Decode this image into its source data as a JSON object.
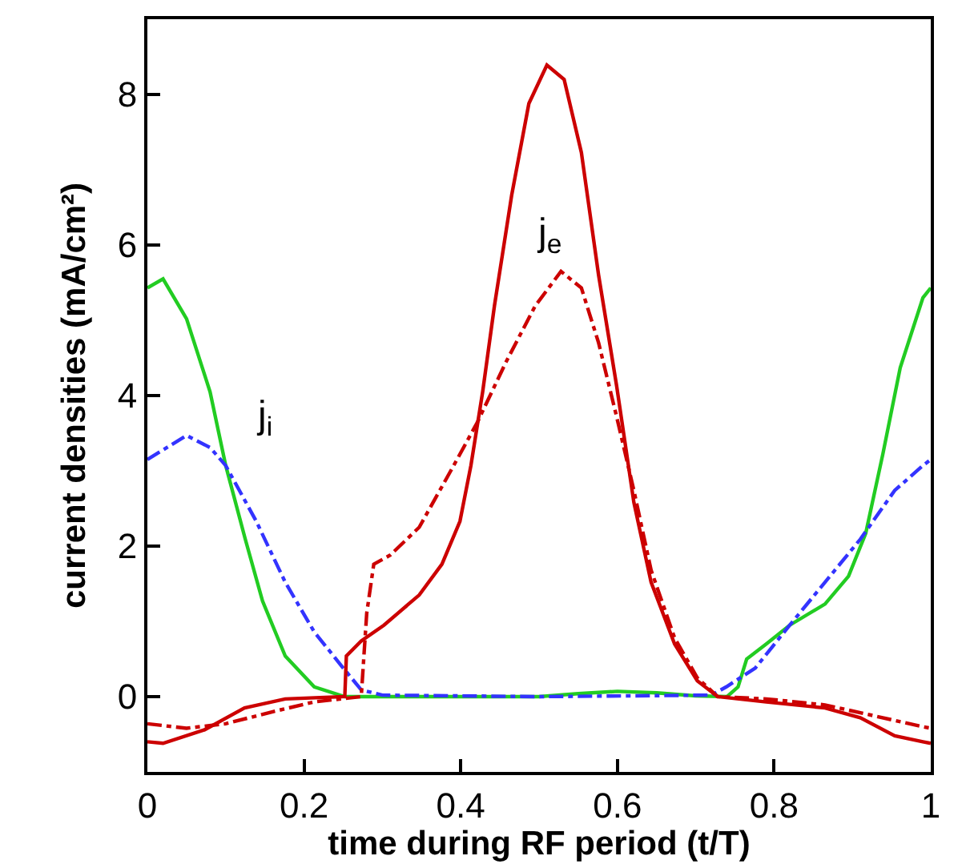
{
  "chart_data": {
    "type": "line",
    "xlabel": "time during RF period (t/T)",
    "ylabel": "current densities (mA/cm²)",
    "xlim": [
      0,
      1
    ],
    "xticks": [
      0,
      0.2,
      0.4,
      0.6,
      0.8,
      1
    ],
    "ylim": [
      -1,
      9
    ],
    "yticks": [
      0,
      2,
      4,
      6,
      8
    ],
    "grid": false,
    "marker": "none",
    "series": [
      {
        "color": "#22cc22",
        "line_style": "solid",
        "x": [
          0,
          0.02,
          0.05,
          0.08,
          0.1,
          0.125,
          0.147,
          0.176,
          0.213,
          0.252,
          0.35,
          0.5,
          0.55,
          0.6,
          0.65,
          0.7,
          0.74,
          0.754,
          0.765,
          0.79,
          0.82,
          0.865,
          0.895,
          0.917,
          0.939,
          0.961,
          0.99,
          1
        ],
        "values": [
          5.43,
          5.55,
          5.02,
          4.05,
          3.07,
          2.09,
          1.27,
          0.54,
          0.13,
          0,
          0,
          0,
          0.04,
          0.07,
          0.05,
          0.01,
          0,
          0.13,
          0.5,
          0.7,
          0.95,
          1.23,
          1.6,
          2.17,
          3.23,
          4.37,
          5.3,
          5.43
        ]
      },
      {
        "color": "#3333ff",
        "line_style": "dashdot",
        "x": [
          0,
          0.05,
          0.08,
          0.1,
          0.139,
          0.176,
          0.213,
          0.25,
          0.273,
          0.3,
          0.5,
          0.72,
          0.739,
          0.776,
          0.82,
          0.865,
          0.91,
          0.954,
          0.99,
          1
        ],
        "values": [
          3.15,
          3.47,
          3.31,
          3.07,
          2.33,
          1.52,
          0.86,
          0.38,
          0.09,
          0.02,
          0,
          0.02,
          0.13,
          0.38,
          0.95,
          1.52,
          2.09,
          2.74,
          3.07,
          3.15
        ]
      },
      {
        "color": "#cc0000",
        "line_style": "solid",
        "x": [
          0,
          0.02,
          0.073,
          0.124,
          0.176,
          0.252,
          0.254,
          0.273,
          0.302,
          0.347,
          0.376,
          0.399,
          0.413,
          0.428,
          0.443,
          0.465,
          0.487,
          0.51,
          0.532,
          0.554,
          0.576,
          0.599,
          0.621,
          0.643,
          0.673,
          0.702,
          0.728,
          0.79,
          0.865,
          0.91,
          0.954,
          0.99,
          1
        ],
        "values": [
          -0.6,
          -0.62,
          -0.44,
          -0.15,
          -0.03,
          0,
          0.54,
          0.74,
          0.95,
          1.35,
          1.76,
          2.33,
          3.07,
          4.05,
          5.19,
          6.66,
          7.88,
          8.39,
          8.2,
          7.23,
          5.6,
          4.13,
          2.58,
          1.52,
          0.7,
          0.21,
          0,
          -0.07,
          -0.15,
          -0.28,
          -0.52,
          -0.6,
          -0.62
        ]
      },
      {
        "color": "#cc0000",
        "line_style": "dashdot",
        "x": [
          0,
          0.05,
          0.1,
          0.16,
          0.213,
          0.273,
          0.28,
          0.289,
          0.31,
          0.347,
          0.391,
          0.421,
          0.458,
          0.495,
          0.528,
          0.554,
          0.576,
          0.599,
          0.621,
          0.643,
          0.673,
          0.702,
          0.728,
          0.79,
          0.865,
          0.917,
          0.99,
          1
        ],
        "values": [
          -0.36,
          -0.42,
          -0.36,
          -0.2,
          -0.07,
          0,
          1.11,
          1.76,
          1.88,
          2.25,
          3.07,
          3.64,
          4.45,
          5.19,
          5.65,
          5.43,
          4.7,
          3.72,
          2.74,
          1.68,
          0.78,
          0.25,
          0,
          -0.03,
          -0.11,
          -0.23,
          -0.4,
          -0.42
        ]
      }
    ],
    "annotations": [
      "j$_{i}$",
      "j$_{e}$"
    ]
  }
}
